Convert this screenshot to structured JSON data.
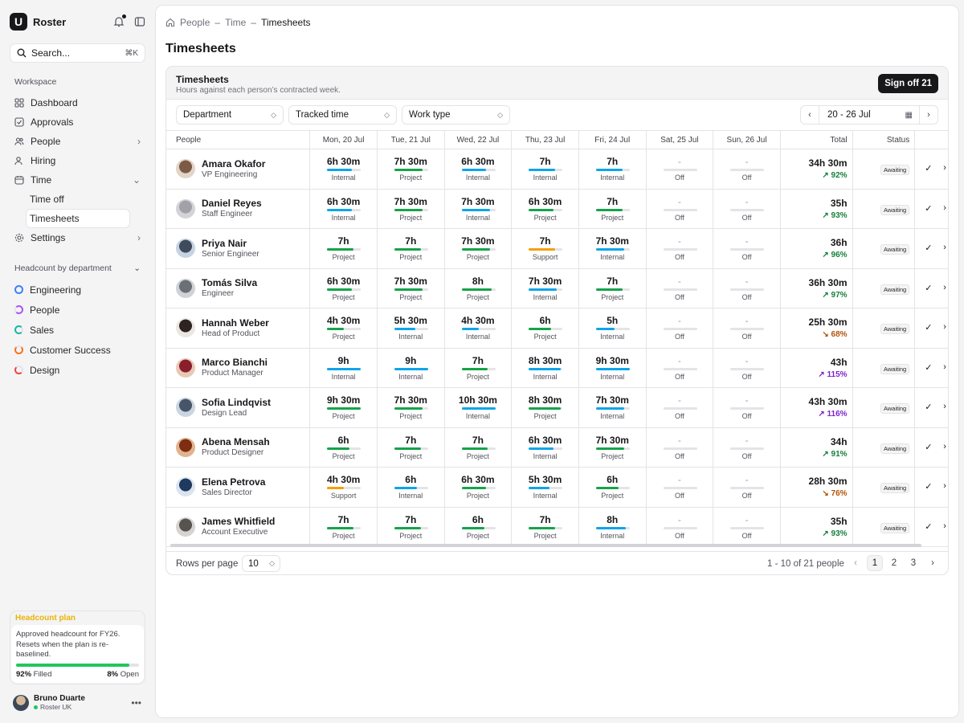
{
  "app": {
    "name": "Roster",
    "logo_letter": "U"
  },
  "search": {
    "placeholder": "Search...",
    "shortcut": "⌘K"
  },
  "sidebar": {
    "section_label": "Workspace",
    "items": [
      {
        "label": "Dashboard",
        "icon": "grid-icon"
      },
      {
        "label": "Approvals",
        "icon": "check-square-icon"
      },
      {
        "label": "People",
        "icon": "users-icon",
        "chevron": "right"
      },
      {
        "label": "Hiring",
        "icon": "user-plus-icon"
      },
      {
        "label": "Time",
        "icon": "calendar-icon",
        "chevron": "down"
      }
    ],
    "time_subitems": [
      "Time off",
      "Timesheets"
    ],
    "settings": {
      "label": "Settings",
      "icon": "gear-icon"
    },
    "headcount_label": "Headcount by department",
    "departments": [
      {
        "label": "Engineering",
        "color": "#3b82f6"
      },
      {
        "label": "People",
        "color": "#a855f7"
      },
      {
        "label": "Sales",
        "color": "#14b8a6"
      },
      {
        "label": "Customer Success",
        "color": "#f97316"
      },
      {
        "label": "Design",
        "color": "#ef4444"
      }
    ],
    "plan": {
      "title": "Headcount plan",
      "text": "Approved headcount for FY26. Resets when the plan is re-baselined.",
      "filled_pct": "92%",
      "filled_label": "Filled",
      "filled_fraction": 0.92,
      "open_pct": "8%",
      "open_label": "Open"
    },
    "user": {
      "name": "Bruno Duarte",
      "org": "Roster UK"
    }
  },
  "breadcrumb": [
    "People",
    "Time",
    "Timesheets"
  ],
  "page_title": "Timesheets",
  "card": {
    "title": "Timesheets",
    "subtitle": "Hours against each person’s contracted week.",
    "signoff_label": "Sign off 21"
  },
  "filters": {
    "department": "Department",
    "tracked": "Tracked time",
    "worktype": "Work type",
    "date_range": "20 - 26 Jul"
  },
  "columns": {
    "people": "People",
    "days": [
      "Mon, 20 Jul",
      "Tue, 21 Jul",
      "Wed, 22 Jul",
      "Thu, 23 Jul",
      "Fri, 24 Jul",
      "Sat, 25 Jul",
      "Sun, 26 Jul"
    ],
    "total": "Total",
    "status": "Status"
  },
  "type_colors": {
    "Internal": "#0ea5e9",
    "Project": "#16a34a",
    "Support": "#f59e0b",
    "Off": "#e4e4e7"
  },
  "rows": [
    {
      "name": "Amara Okafor",
      "role": "VP Engineering",
      "avatar": [
        "#7c5a46",
        "#e2d5c7"
      ],
      "days": [
        [
          "6h 30m",
          "Internal"
        ],
        [
          "7h 30m",
          "Project"
        ],
        [
          "6h 30m",
          "Internal"
        ],
        [
          "7h",
          "Internal"
        ],
        [
          "7h",
          "Internal"
        ],
        [
          "-",
          "Off"
        ],
        [
          "-",
          "Off"
        ]
      ],
      "total": "34h 30m",
      "pct": "92%",
      "trend": "up",
      "status": "Awaiting"
    },
    {
      "name": "Daniel Reyes",
      "role": "Staff Engineer",
      "avatar": [
        "#a1a1aa",
        "#d4d4d8"
      ],
      "days": [
        [
          "6h 30m",
          "Internal"
        ],
        [
          "7h 30m",
          "Project"
        ],
        [
          "7h 30m",
          "Internal"
        ],
        [
          "6h 30m",
          "Project"
        ],
        [
          "7h",
          "Project"
        ],
        [
          "-",
          "Off"
        ],
        [
          "-",
          "Off"
        ]
      ],
      "total": "35h",
      "pct": "93%",
      "trend": "up",
      "status": "Awaiting"
    },
    {
      "name": "Priya Nair",
      "role": "Senior Engineer",
      "avatar": [
        "#3f4a5c",
        "#c6d3e0"
      ],
      "days": [
        [
          "7h",
          "Project"
        ],
        [
          "7h",
          "Project"
        ],
        [
          "7h 30m",
          "Project"
        ],
        [
          "7h",
          "Support"
        ],
        [
          "7h 30m",
          "Internal"
        ],
        [
          "-",
          "Off"
        ],
        [
          "-",
          "Off"
        ]
      ],
      "total": "36h",
      "pct": "96%",
      "trend": "up",
      "status": "Awaiting"
    },
    {
      "name": "Tomás Silva",
      "role": "Engineer",
      "avatar": [
        "#6b6f76",
        "#cfd3d8"
      ],
      "days": [
        [
          "6h 30m",
          "Project"
        ],
        [
          "7h 30m",
          "Project"
        ],
        [
          "8h",
          "Project"
        ],
        [
          "7h 30m",
          "Internal"
        ],
        [
          "7h",
          "Project"
        ],
        [
          "-",
          "Off"
        ],
        [
          "-",
          "Off"
        ]
      ],
      "total": "36h 30m",
      "pct": "97%",
      "trend": "up",
      "status": "Awaiting"
    },
    {
      "name": "Hannah Weber",
      "role": "Head of Product",
      "avatar": [
        "#2d2320",
        "#ece6e1"
      ],
      "days": [
        [
          "4h 30m",
          "Project"
        ],
        [
          "5h 30m",
          "Internal"
        ],
        [
          "4h 30m",
          "Internal"
        ],
        [
          "6h",
          "Project"
        ],
        [
          "5h",
          "Internal"
        ],
        [
          "-",
          "Off"
        ],
        [
          "-",
          "Off"
        ]
      ],
      "total": "25h 30m",
      "pct": "68%",
      "trend": "down",
      "status": "Awaiting"
    },
    {
      "name": "Marco Bianchi",
      "role": "Product Manager",
      "avatar": [
        "#8b1e2d",
        "#e8c9b6"
      ],
      "days": [
        [
          "9h",
          "Internal"
        ],
        [
          "9h",
          "Internal"
        ],
        [
          "7h",
          "Project"
        ],
        [
          "8h 30m",
          "Internal"
        ],
        [
          "9h 30m",
          "Internal"
        ],
        [
          "-",
          "Off"
        ],
        [
          "-",
          "Off"
        ]
      ],
      "total": "43h",
      "pct": "115%",
      "trend": "up-over",
      "status": "Awaiting"
    },
    {
      "name": "Sofia Lindqvist",
      "role": "Design Lead",
      "avatar": [
        "#475569",
        "#cbd5e1"
      ],
      "days": [
        [
          "9h 30m",
          "Project"
        ],
        [
          "7h 30m",
          "Project"
        ],
        [
          "10h 30m",
          "Internal"
        ],
        [
          "8h 30m",
          "Project"
        ],
        [
          "7h 30m",
          "Internal"
        ],
        [
          "-",
          "Off"
        ],
        [
          "-",
          "Off"
        ]
      ],
      "total": "43h 30m",
      "pct": "116%",
      "trend": "up-over",
      "status": "Awaiting"
    },
    {
      "name": "Abena Mensah",
      "role": "Product Designer",
      "avatar": [
        "#7c2d12",
        "#e0b48f"
      ],
      "days": [
        [
          "6h",
          "Project"
        ],
        [
          "7h",
          "Project"
        ],
        [
          "7h",
          "Project"
        ],
        [
          "6h 30m",
          "Internal"
        ],
        [
          "7h 30m",
          "Project"
        ],
        [
          "-",
          "Off"
        ],
        [
          "-",
          "Off"
        ]
      ],
      "total": "34h",
      "pct": "91%",
      "trend": "up",
      "status": "Awaiting"
    },
    {
      "name": "Elena Petrova",
      "role": "Sales Director",
      "avatar": [
        "#1e3a5f",
        "#dbe4ee"
      ],
      "days": [
        [
          "4h 30m",
          "Support"
        ],
        [
          "6h",
          "Internal"
        ],
        [
          "6h 30m",
          "Project"
        ],
        [
          "5h 30m",
          "Internal"
        ],
        [
          "6h",
          "Project"
        ],
        [
          "-",
          "Off"
        ],
        [
          "-",
          "Off"
        ]
      ],
      "total": "28h 30m",
      "pct": "76%",
      "trend": "down",
      "status": "Awaiting"
    },
    {
      "name": "James Whitfield",
      "role": "Account Executive",
      "avatar": [
        "#57534e",
        "#d6d3d1"
      ],
      "days": [
        [
          "7h",
          "Project"
        ],
        [
          "7h",
          "Project"
        ],
        [
          "6h",
          "Project"
        ],
        [
          "7h",
          "Project"
        ],
        [
          "8h",
          "Internal"
        ],
        [
          "-",
          "Off"
        ],
        [
          "-",
          "Off"
        ]
      ],
      "total": "35h",
      "pct": "93%",
      "trend": "up",
      "status": "Awaiting"
    }
  ],
  "footer": {
    "rows_per_page_label": "Rows per page",
    "rows_per_page": "10",
    "range": "1 - 10 of 21 people",
    "pages": [
      "1",
      "2",
      "3"
    ],
    "current_page": "1"
  }
}
